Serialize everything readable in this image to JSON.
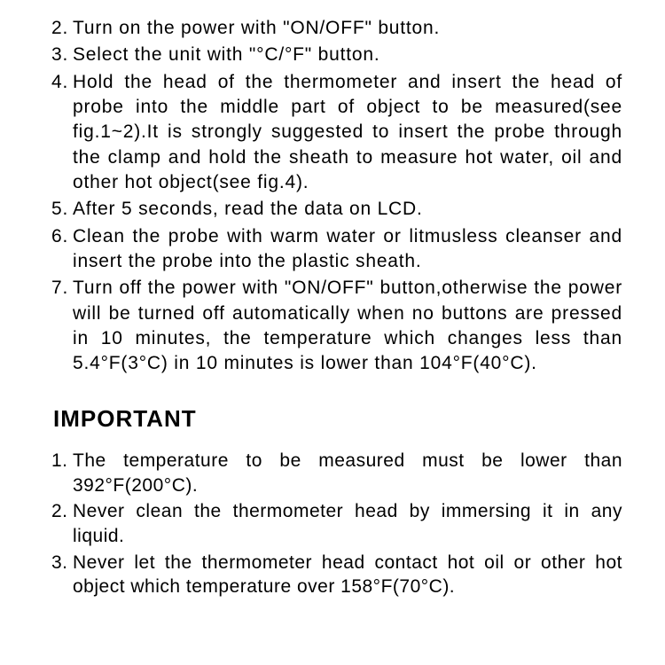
{
  "instructions": {
    "items": [
      {
        "num": "2.",
        "text": "Turn  on the power with  \"ON/OFF\" button."
      },
      {
        "num": "3.",
        "text": "Select  the unit with  \"°C/°F\" button."
      },
      {
        "num": "4.",
        "text": "Hold the head of the thermometer and insert the head of probe into the middle part of object to be measured(see fig.1~2).It is strongly suggested to insert the probe through the clamp and hold the sheath to measure hot water, oil and other hot object(see fig.4)."
      },
      {
        "num": "5.",
        "text": "After 5 seconds, read the data on LCD."
      },
      {
        "num": "6.",
        "text": "Clean the probe with warm water or litmusless cleanser and insert the probe into the plastic sheath."
      },
      {
        "num": "7.",
        "text": "Turn off the power with \"ON/OFF\" button,otherwise the power will be turned off automatically when no buttons are pressed in 10 minutes, the temperature which changes less than 5.4°F(3°C) in 10 minutes is lower than 104°F(40°C)."
      }
    ]
  },
  "important": {
    "heading": "IMPORTANT",
    "items": [
      {
        "num": "1.",
        "text": "The temperature to be measured must be lower than  392°F(200°C)."
      },
      {
        "num": "2.",
        "text": "Never clean the thermometer head by  immersing it in any liquid."
      },
      {
        "num": "3.",
        "text": "Never let the thermometer head contact hot oil or other hot object which temperature over 158°F(70°C)."
      }
    ]
  },
  "styling": {
    "background_color": "#ffffff",
    "text_color": "#000000",
    "font_family": "Arial, Helvetica, sans-serif",
    "body_fontsize": 21,
    "heading_fontsize": 26,
    "heading_weight": 900,
    "line_height": 1.35,
    "letter_spacing": 0.8
  }
}
